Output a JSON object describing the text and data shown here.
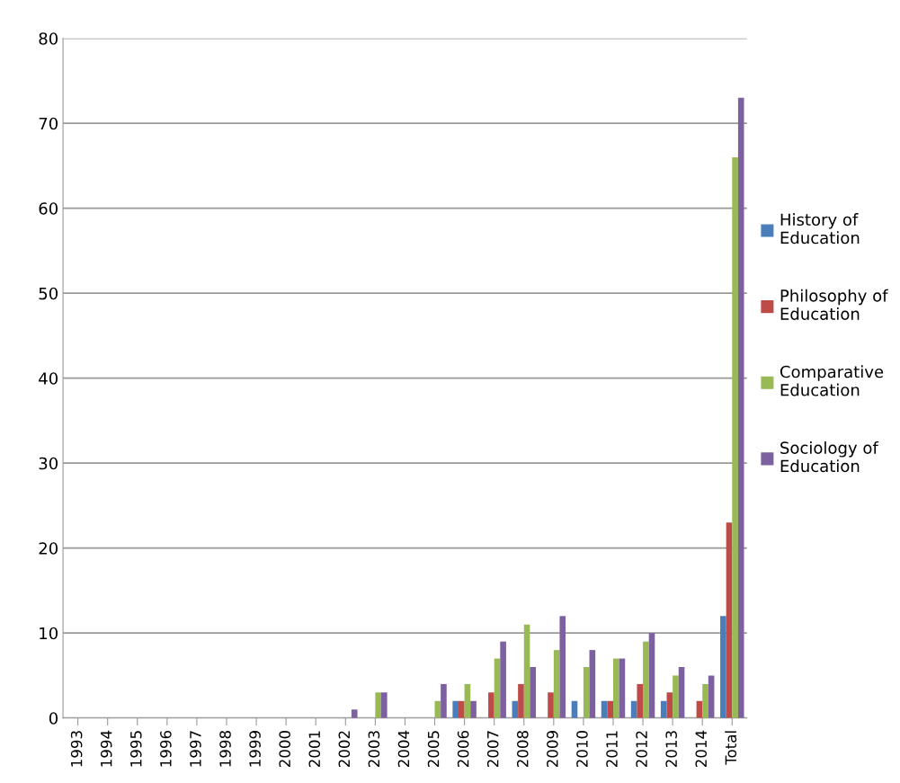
{
  "chart_data": {
    "type": "bar",
    "categories": [
      "1993",
      "1994",
      "1995",
      "1996",
      "1997",
      "1998",
      "1999",
      "2000",
      "2001",
      "2002",
      "2003",
      "2004",
      "2005",
      "2006",
      "2007",
      "2008",
      "2009",
      "2010",
      "2011",
      "2012",
      "2013",
      "2014",
      "Total"
    ],
    "series": [
      {
        "name": "History of Education",
        "color": "#4a7ebb",
        "values": [
          0,
          0,
          0,
          0,
          0,
          0,
          0,
          0,
          0,
          0,
          0,
          0,
          0,
          2,
          0,
          2,
          0,
          2,
          2,
          2,
          2,
          0,
          12
        ]
      },
      {
        "name": "Philosophy of Education",
        "color": "#be4b48",
        "values": [
          0,
          0,
          0,
          0,
          0,
          0,
          0,
          0,
          0,
          0,
          0,
          0,
          0,
          2,
          3,
          4,
          3,
          0,
          2,
          4,
          3,
          2,
          23
        ]
      },
      {
        "name": "Comparative Education",
        "color": "#98b954",
        "values": [
          0,
          0,
          0,
          0,
          0,
          0,
          0,
          0,
          0,
          0,
          3,
          0,
          2,
          4,
          7,
          11,
          8,
          6,
          7,
          9,
          5,
          4,
          66
        ]
      },
      {
        "name": "Sociology of Education",
        "color": "#7d60a0",
        "values": [
          0,
          0,
          0,
          0,
          0,
          0,
          0,
          0,
          0,
          1,
          3,
          0,
          4,
          2,
          9,
          6,
          12,
          8,
          7,
          10,
          6,
          5,
          73
        ]
      }
    ],
    "ylim": [
      0,
      80
    ],
    "yticks": [
      0,
      10,
      20,
      30,
      40,
      50,
      60,
      70,
      80
    ],
    "grid": "y",
    "legend": "right"
  }
}
